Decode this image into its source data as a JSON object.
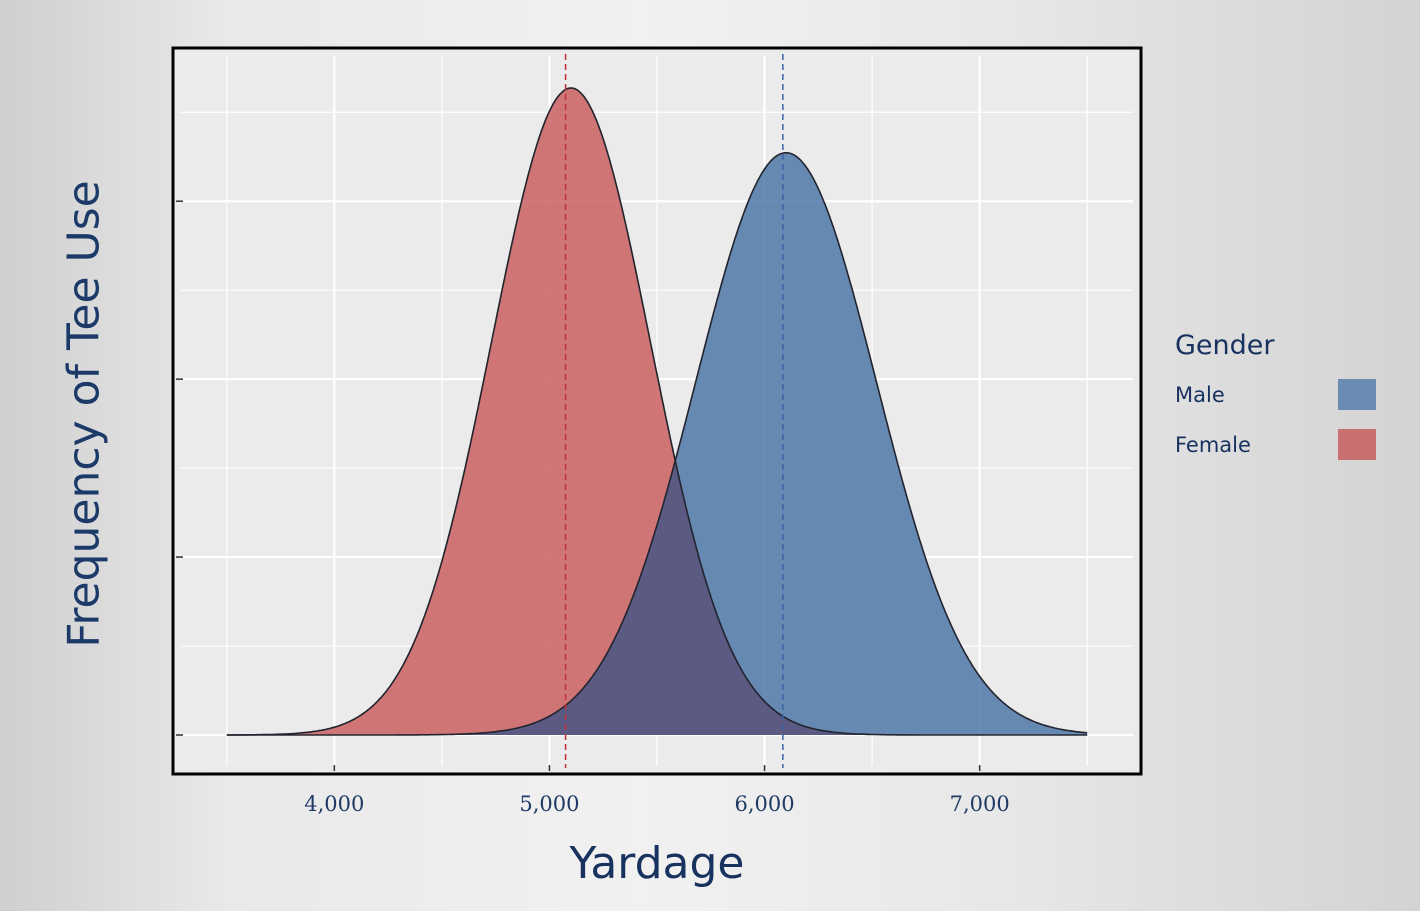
{
  "chart_data": {
    "type": "area",
    "title": "",
    "xlabel": "Yardage",
    "ylabel": "Frequency of Tee Use",
    "xlim": [
      3250,
      7750
    ],
    "ylim": [
      0,
      1.09
    ],
    "x_ticks": [
      {
        "value": 4000,
        "label": "4,000"
      },
      {
        "value": 5000,
        "label": "5,000"
      },
      {
        "value": 6000,
        "label": "6,000"
      },
      {
        "value": 7000,
        "label": "7,000"
      }
    ],
    "y_tick_labels_shown": false,
    "grid": true,
    "legend": {
      "title": "Gender",
      "placement": "right",
      "entries": [
        {
          "label": "Male",
          "color": "#6a8cb3"
        },
        {
          "label": "Female",
          "color": "#c86f6f"
        }
      ]
    },
    "series": [
      {
        "name": "Male",
        "color": "#4f78a8",
        "x_range": [
          3500,
          7500
        ],
        "peak_x": 6100,
        "peak_density": 0.9,
        "spread": 420,
        "mean_line": 6085
      },
      {
        "name": "Female",
        "color": "#c85a5a",
        "x_range": [
          3500,
          7500
        ],
        "peak_x": 5100,
        "peak_density": 1.0,
        "spread": 370,
        "mean_line": 5075
      }
    ],
    "overlap_color": "#5a5a82"
  }
}
